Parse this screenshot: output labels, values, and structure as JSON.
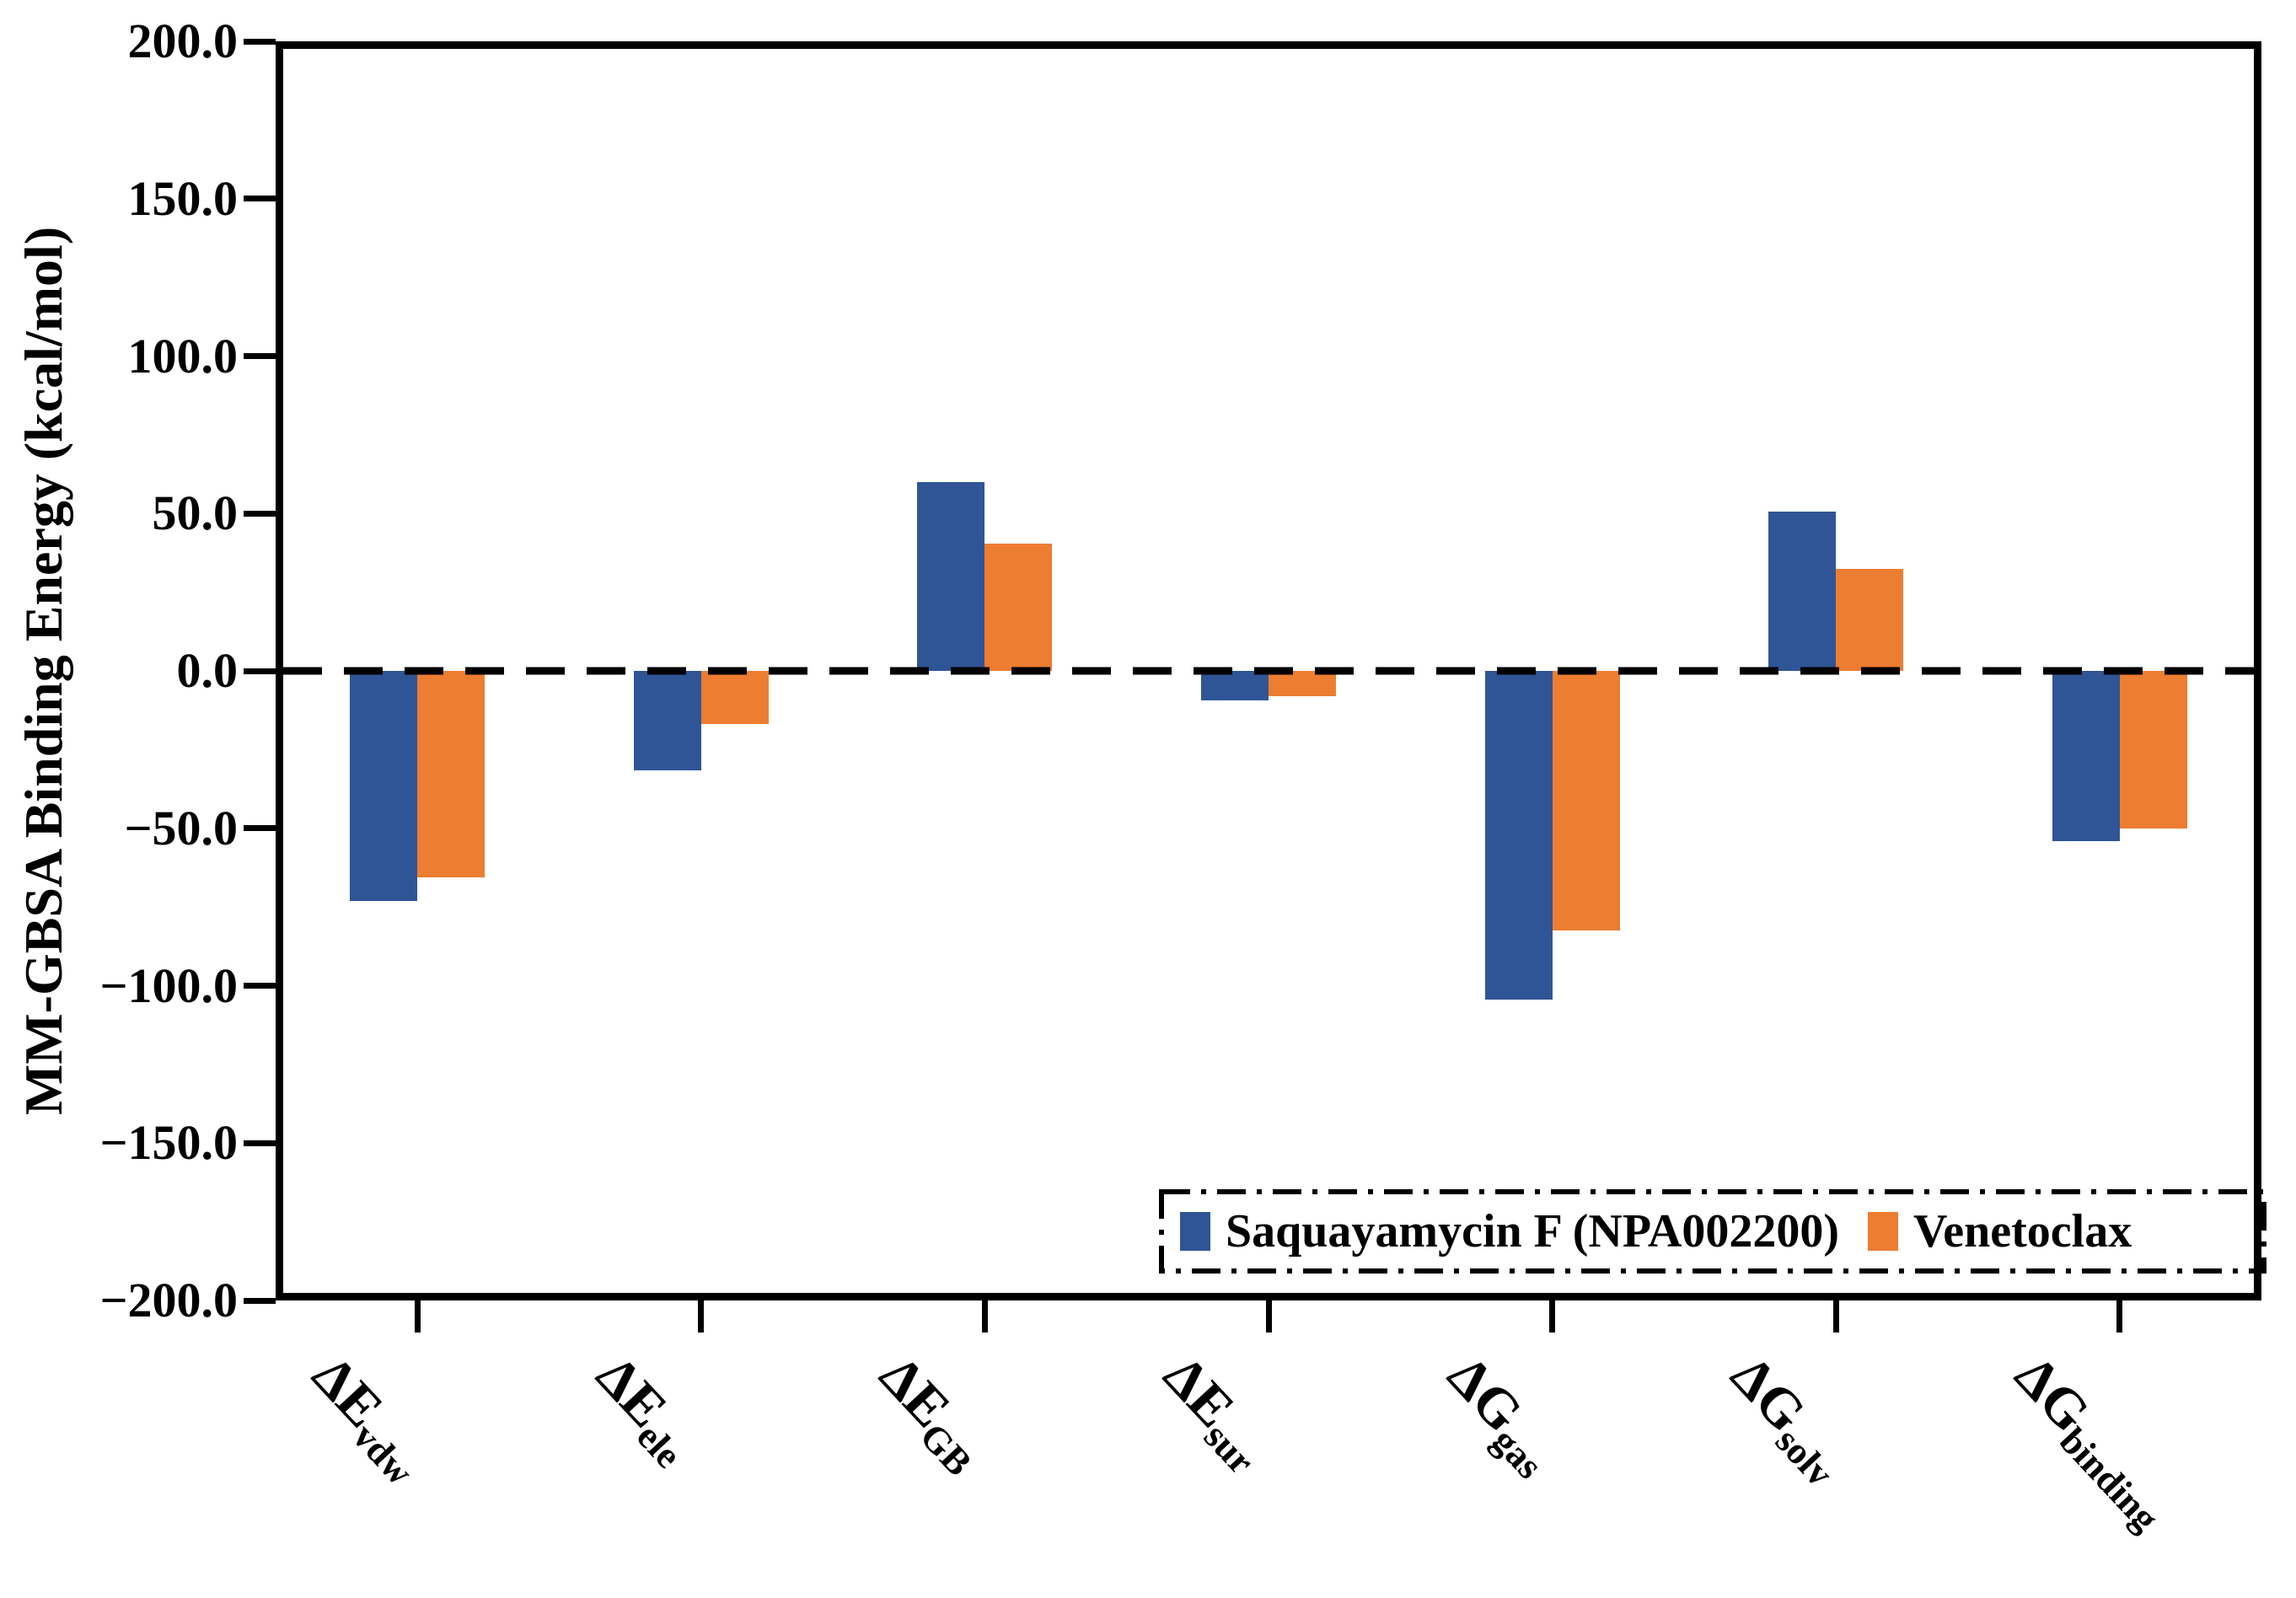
{
  "figure": {
    "background": "#ffffff",
    "axis_color": "#000000"
  },
  "chart_data": {
    "type": "bar",
    "title": "",
    "xlabel": "",
    "ylabel": "MM-GBSA Binding Energy (kcal/mol)",
    "ylim": [
      -200,
      200
    ],
    "ytick_step": 50,
    "ytick_labels": [
      "200.0",
      "150.0",
      "100.0",
      "50.0",
      "0.0",
      "−50.0",
      "−100.0",
      "−150.0",
      "−200.0"
    ],
    "grid": false,
    "zero_line_style": "dashed",
    "legend_position": "lower-right",
    "legend_border_style": "dash-dot",
    "categories": [
      {
        "main": "ΔE",
        "sub": "vdw"
      },
      {
        "main": "ΔE",
        "sub": "ele"
      },
      {
        "main": "ΔE",
        "sub": "GB"
      },
      {
        "main": "ΔE",
        "sub": "sur"
      },
      {
        "main": "ΔG",
        "sub": "gas"
      },
      {
        "main": "ΔG",
        "sub": "solv"
      },
      {
        "main": "ΔG",
        "sub": "binding"
      }
    ],
    "series": [
      {
        "name": "Saquayamycin F (NPA002200)",
        "color": "#2F5597",
        "values": [
          -73.0,
          -31.5,
          60.0,
          -9.5,
          -104.5,
          50.5,
          -54.0
        ]
      },
      {
        "name": "Venetoclax",
        "color": "#ED7D31",
        "values": [
          -65.5,
          -17.0,
          40.5,
          -8.0,
          -82.5,
          32.5,
          -50.0
        ]
      }
    ]
  }
}
